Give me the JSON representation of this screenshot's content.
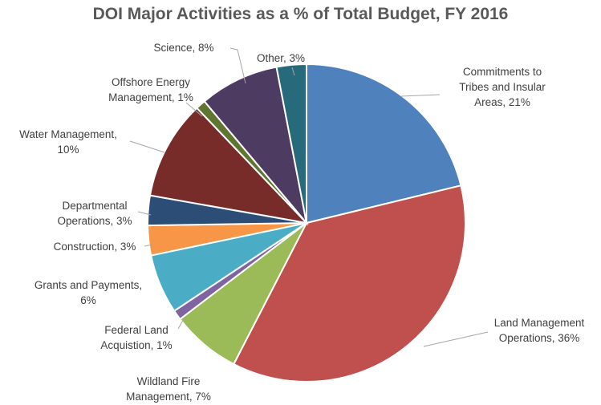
{
  "chart_data": {
    "type": "pie",
    "title": "DOI Major Activities as a % of Total Budget, FY 2016",
    "slices": [
      {
        "label": "Commitments to Tribes and Insular Areas",
        "value": 21,
        "text": [
          "Commitments to",
          "Tribes and Insular",
          "Areas, 21%"
        ],
        "color": "#4F81BD"
      },
      {
        "label": "Land Management Operations",
        "value": 36,
        "text": [
          "Land Management",
          "Operations, 36%"
        ],
        "color": "#C0504D"
      },
      {
        "label": "Wildland Fire Management",
        "value": 7,
        "text": [
          "Wildland Fire",
          "Management, 7%"
        ],
        "color": "#9BBB59"
      },
      {
        "label": "Federal Land Acquistion",
        "value": 1,
        "text": [
          "Federal Land",
          "Acquistion, 1%"
        ],
        "color": "#8064A2"
      },
      {
        "label": "Grants and Payments",
        "value": 6,
        "text": [
          "Grants and Payments,",
          "6%"
        ],
        "color": "#4BACC6"
      },
      {
        "label": "Construction",
        "value": 3,
        "text": [
          "Construction, 3%"
        ],
        "color": "#F79646"
      },
      {
        "label": "Departmental Operations",
        "value": 3,
        "text": [
          "Departmental",
          "Operations, 3%"
        ],
        "color": "#2C4D75"
      },
      {
        "label": "Water Management",
        "value": 10,
        "text": [
          "Water Management,",
          "10%"
        ],
        "color": "#772C2A"
      },
      {
        "label": "Offshore Energy Management",
        "value": 1,
        "text": [
          "Offshore Energy",
          "Management, 1%"
        ],
        "color": "#5F7530"
      },
      {
        "label": "Science",
        "value": 8,
        "text": [
          "Science, 8%"
        ],
        "color": "#4D3B62"
      },
      {
        "label": "Other",
        "value": 3,
        "text": [
          "Other, 3%"
        ],
        "color": "#276A7C"
      }
    ]
  }
}
